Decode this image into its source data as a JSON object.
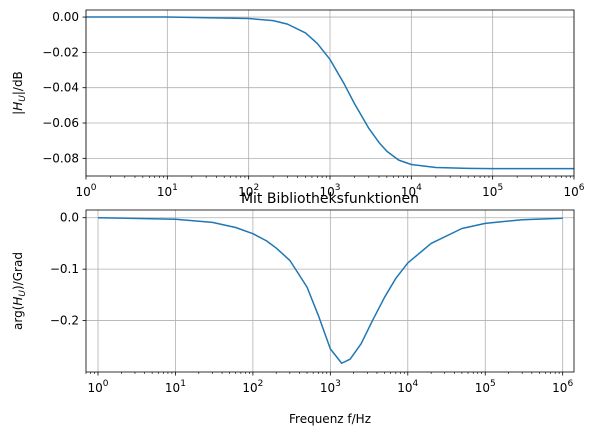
{
  "chart_data": [
    {
      "type": "line",
      "title": "",
      "xlabel": "",
      "ylabel": "|H_U|/dB",
      "xscale": "log",
      "xlim": [
        1,
        1000000
      ],
      "ylim": [
        -0.09,
        0.004
      ],
      "grid": true,
      "x_ticks": [
        1,
        10,
        100,
        1000,
        10000,
        100000,
        1000000
      ],
      "x_tick_labels": [
        {
          "base": "10",
          "exp": "0"
        },
        {
          "base": "10",
          "exp": "1"
        },
        {
          "base": "10",
          "exp": "2"
        },
        {
          "base": "10",
          "exp": "3"
        },
        {
          "base": "10",
          "exp": "4"
        },
        {
          "base": "10",
          "exp": "5"
        },
        {
          "base": "10",
          "exp": "6"
        }
      ],
      "y_ticks": [
        0,
        -0.02,
        -0.04,
        -0.06,
        -0.08
      ],
      "y_tick_labels": [
        "0.00",
        "−0.02",
        "−0.04",
        "−0.06",
        "−0.08"
      ],
      "series": [
        {
          "color": "#1f77b4",
          "x": [
            1,
            10,
            100,
            200,
            300,
            500,
            700,
            1000,
            1500,
            2000,
            3000,
            4000,
            5000,
            7000,
            10000,
            20000,
            50000,
            100000,
            1000000
          ],
          "y": [
            0.0,
            0.0,
            -0.0008,
            -0.002,
            -0.004,
            -0.009,
            -0.015,
            -0.024,
            -0.038,
            -0.049,
            -0.063,
            -0.071,
            -0.076,
            -0.081,
            -0.0835,
            -0.0852,
            -0.0857,
            -0.0858,
            -0.0858
          ]
        }
      ]
    },
    {
      "type": "line",
      "title": "Mit Bibliotheksfunktionen",
      "xlabel": "Frequenz f/Hz",
      "ylabel": "arg(H_U)/Grad",
      "xscale": "log",
      "xlim": [
        0.7,
        1400000
      ],
      "ylim": [
        -0.3,
        0.015
      ],
      "grid": true,
      "x_ticks": [
        1,
        10,
        100,
        1000,
        10000,
        100000,
        1000000
      ],
      "x_tick_labels": [
        {
          "base": "10",
          "exp": "0"
        },
        {
          "base": "10",
          "exp": "1"
        },
        {
          "base": "10",
          "exp": "2"
        },
        {
          "base": "10",
          "exp": "3"
        },
        {
          "base": "10",
          "exp": "4"
        },
        {
          "base": "10",
          "exp": "5"
        },
        {
          "base": "10",
          "exp": "6"
        }
      ],
      "y_ticks": [
        0,
        -0.1,
        -0.2
      ],
      "y_tick_labels": [
        "0.0",
        "−0.1",
        "−0.2"
      ],
      "series": [
        {
          "color": "#1f77b4",
          "x": [
            1,
            10,
            30,
            60,
            100,
            150,
            200,
            300,
            500,
            700,
            1000,
            1400,
            1800,
            2500,
            3500,
            5000,
            7000,
            10000,
            20000,
            50000,
            100000,
            300000,
            1000000
          ],
          "y": [
            0.0,
            -0.003,
            -0.009,
            -0.019,
            -0.031,
            -0.045,
            -0.059,
            -0.083,
            -0.135,
            -0.19,
            -0.255,
            -0.283,
            -0.275,
            -0.245,
            -0.2,
            -0.155,
            -0.118,
            -0.088,
            -0.05,
            -0.021,
            -0.011,
            -0.004,
            -0.001
          ]
        }
      ]
    }
  ]
}
